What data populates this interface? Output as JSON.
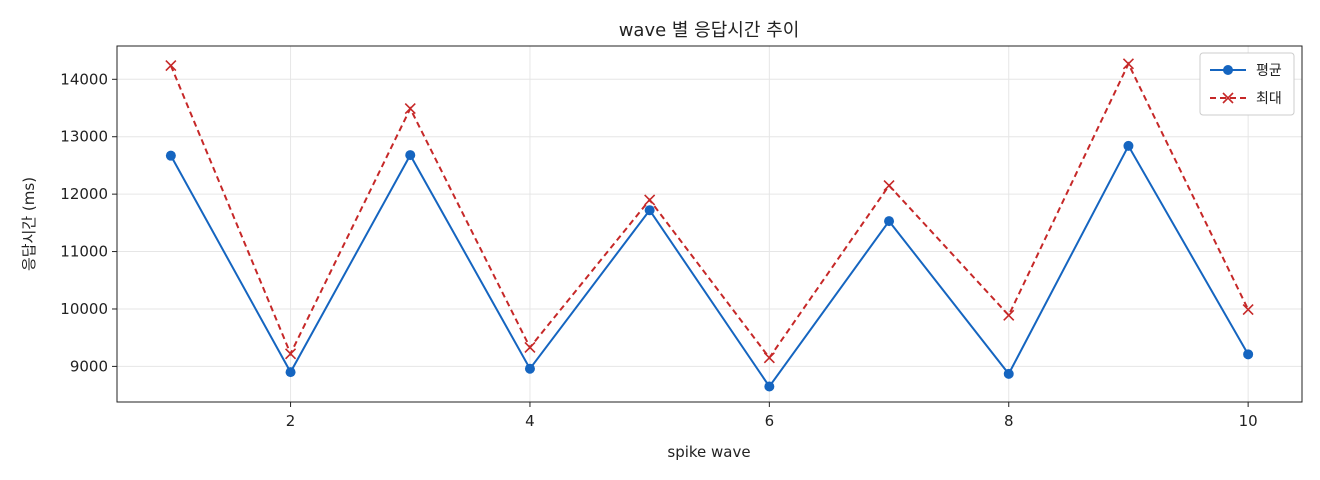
{
  "chart_data": {
    "type": "line",
    "title": "wave 별 응답시간 추이",
    "xlabel": "spike wave",
    "ylabel": "응답시간 (ms)",
    "x": [
      1,
      2,
      3,
      4,
      5,
      6,
      7,
      8,
      9,
      10
    ],
    "xticks": [
      2,
      4,
      6,
      8,
      10
    ],
    "yticks": [
      9000,
      10000,
      11000,
      12000,
      13000,
      14000
    ],
    "xlim": [
      0.55,
      10.45
    ],
    "ylim": [
      8380,
      14580
    ],
    "grid": true,
    "legend_position": "top-right",
    "series": [
      {
        "name": "평균",
        "color": "#1565c0",
        "marker": "circle",
        "line_style": "solid",
        "values": [
          12670,
          8900,
          12680,
          8960,
          11720,
          8650,
          11530,
          8870,
          12840,
          9210
        ]
      },
      {
        "name": "최대",
        "color": "#c62828",
        "marker": "x",
        "line_style": "dashed",
        "values": [
          14240,
          9220,
          13490,
          9330,
          11900,
          9150,
          12150,
          9890,
          14270,
          9990
        ]
      }
    ]
  }
}
